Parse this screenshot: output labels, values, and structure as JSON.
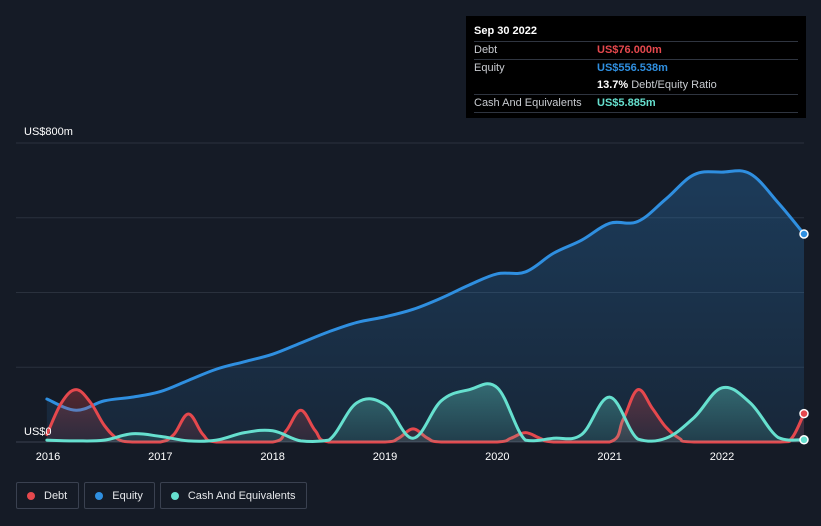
{
  "tooltip": {
    "date": "Sep 30 2022",
    "debt_label": "Debt",
    "debt_value": "US$76.000m",
    "equity_label": "Equity",
    "equity_value": "US$556.538m",
    "ratio_value": "13.7%",
    "ratio_label": "Debt/Equity Ratio",
    "cash_label": "Cash And Equivalents",
    "cash_value": "US$5.885m"
  },
  "legend": {
    "debt": "Debt",
    "equity": "Equity",
    "cash": "Cash And Equivalents"
  },
  "colors": {
    "debt": "#e5484d",
    "equity": "#2f8fe0",
    "cash": "#66e0cf",
    "background": "#151b26"
  },
  "chart_data": {
    "type": "area",
    "ylabel_top": "US$800m",
    "ylabel_bottom": "US$0",
    "ylim": [
      0,
      800
    ],
    "xlim": [
      2016,
      2022.73
    ],
    "x_ticks": [
      "2016",
      "2017",
      "2018",
      "2019",
      "2020",
      "2021",
      "2022"
    ],
    "grid": true,
    "series": [
      {
        "name": "Equity",
        "points": [
          [
            2015.99,
            115
          ],
          [
            2016.25,
            85
          ],
          [
            2016.5,
            110
          ],
          [
            2016.75,
            120
          ],
          [
            2017.0,
            135
          ],
          [
            2017.25,
            165
          ],
          [
            2017.5,
            195
          ],
          [
            2017.75,
            215
          ],
          [
            2018.0,
            235
          ],
          [
            2018.25,
            265
          ],
          [
            2018.5,
            295
          ],
          [
            2018.75,
            320
          ],
          [
            2019.0,
            335
          ],
          [
            2019.25,
            355
          ],
          [
            2019.5,
            385
          ],
          [
            2019.75,
            420
          ],
          [
            2020.0,
            450
          ],
          [
            2020.25,
            455
          ],
          [
            2020.5,
            505
          ],
          [
            2020.75,
            540
          ],
          [
            2021.0,
            585
          ],
          [
            2021.25,
            590
          ],
          [
            2021.5,
            650
          ],
          [
            2021.75,
            715
          ],
          [
            2022.0,
            722
          ],
          [
            2022.25,
            718
          ],
          [
            2022.5,
            640
          ],
          [
            2022.73,
            556.5
          ]
        ]
      },
      {
        "name": "Debt",
        "points": [
          [
            2015.99,
            20
          ],
          [
            2016.12,
            105
          ],
          [
            2016.25,
            140
          ],
          [
            2016.38,
            105
          ],
          [
            2016.5,
            45
          ],
          [
            2016.62,
            8
          ],
          [
            2016.75,
            0
          ],
          [
            2017.0,
            0
          ],
          [
            2017.12,
            20
          ],
          [
            2017.25,
            75
          ],
          [
            2017.38,
            20
          ],
          [
            2017.5,
            0
          ],
          [
            2018.0,
            0
          ],
          [
            2018.12,
            30
          ],
          [
            2018.25,
            85
          ],
          [
            2018.38,
            30
          ],
          [
            2018.5,
            0
          ],
          [
            2019.0,
            0
          ],
          [
            2019.12,
            10
          ],
          [
            2019.25,
            35
          ],
          [
            2019.38,
            10
          ],
          [
            2019.5,
            0
          ],
          [
            2020.0,
            0
          ],
          [
            2020.12,
            10
          ],
          [
            2020.25,
            25
          ],
          [
            2020.38,
            10
          ],
          [
            2020.5,
            0
          ],
          [
            2021.0,
            0
          ],
          [
            2021.12,
            60
          ],
          [
            2021.25,
            140
          ],
          [
            2021.38,
            90
          ],
          [
            2021.5,
            40
          ],
          [
            2021.62,
            10
          ],
          [
            2021.75,
            0
          ],
          [
            2022.5,
            0
          ],
          [
            2022.62,
            10
          ],
          [
            2022.73,
            76
          ]
        ]
      },
      {
        "name": "Cash And Equivalents",
        "points": [
          [
            2015.99,
            5
          ],
          [
            2016.25,
            3
          ],
          [
            2016.5,
            5
          ],
          [
            2016.75,
            22
          ],
          [
            2017.0,
            15
          ],
          [
            2017.25,
            3
          ],
          [
            2017.5,
            5
          ],
          [
            2017.75,
            25
          ],
          [
            2018.0,
            30
          ],
          [
            2018.25,
            3
          ],
          [
            2018.5,
            5
          ],
          [
            2018.75,
            105
          ],
          [
            2019.0,
            100
          ],
          [
            2019.25,
            10
          ],
          [
            2019.5,
            110
          ],
          [
            2019.75,
            140
          ],
          [
            2020.0,
            145
          ],
          [
            2020.25,
            5
          ],
          [
            2020.5,
            10
          ],
          [
            2020.75,
            20
          ],
          [
            2021.0,
            120
          ],
          [
            2021.25,
            8
          ],
          [
            2021.5,
            10
          ],
          [
            2021.75,
            65
          ],
          [
            2022.0,
            145
          ],
          [
            2022.25,
            105
          ],
          [
            2022.5,
            12
          ],
          [
            2022.73,
            5.9
          ]
        ]
      }
    ]
  }
}
